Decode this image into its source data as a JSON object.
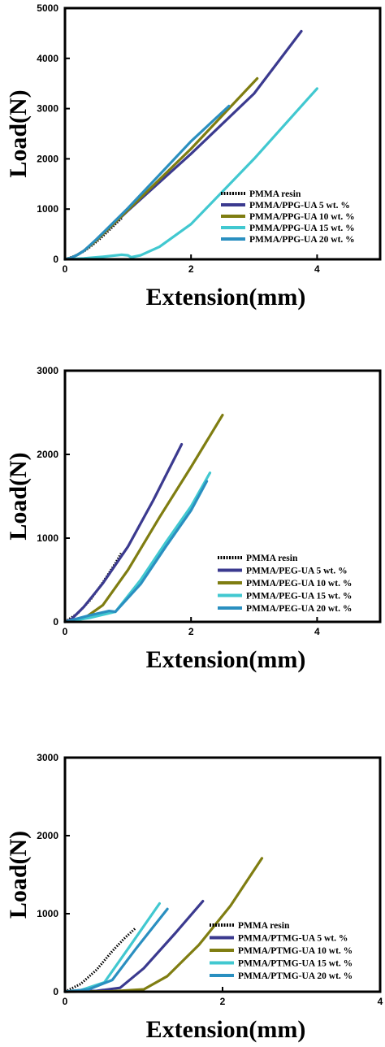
{
  "chart_data": [
    {
      "type": "line",
      "xlabel": "Extension(mm)",
      "ylabel": "Load(N)",
      "xlim": [
        0,
        5
      ],
      "ylim": [
        0,
        5000
      ],
      "xticks": [
        "0",
        "2",
        "4"
      ],
      "xtick_values": [
        0,
        2,
        4
      ],
      "yticks": [
        "0",
        "1000",
        "2000",
        "3000",
        "4000",
        "5000"
      ],
      "ytick_values": [
        0,
        1000,
        2000,
        3000,
        4000,
        5000
      ],
      "legend_position": "bottom-right",
      "grid": false,
      "series": [
        {
          "name": "PMMA resin",
          "color": "#000000",
          "style": "dotted",
          "points": [
            [
              0,
              0
            ],
            [
              0.1,
              40
            ],
            [
              0.2,
              90
            ],
            [
              0.3,
              160
            ],
            [
              0.4,
              250
            ],
            [
              0.5,
              350
            ],
            [
              0.6,
              460
            ],
            [
              0.7,
              580
            ],
            [
              0.8,
              700
            ],
            [
              0.9,
              820
            ]
          ]
        },
        {
          "name": "PMMA/PPG-UA 5 wt. %",
          "color": "#3b3a8f",
          "points": [
            [
              0,
              0
            ],
            [
              0.1,
              30
            ],
            [
              0.2,
              90
            ],
            [
              0.3,
              170
            ],
            [
              0.5,
              380
            ],
            [
              1.0,
              970
            ],
            [
              2.0,
              2100
            ],
            [
              3.0,
              3300
            ],
            [
              3.75,
              4540
            ]
          ]
        },
        {
          "name": "PMMA/PPG-UA 10 wt. %",
          "color": "#7f7d11",
          "points": [
            [
              0,
              0
            ],
            [
              0.1,
              30
            ],
            [
              0.2,
              90
            ],
            [
              0.3,
              170
            ],
            [
              0.5,
              380
            ],
            [
              1.0,
              980
            ],
            [
              2.0,
              2200
            ],
            [
              3.05,
              3600
            ]
          ]
        },
        {
          "name": "PMMA/PPG-UA 15 wt. %",
          "color": "#41c8d0",
          "points": [
            [
              0,
              0
            ],
            [
              0.3,
              20
            ],
            [
              0.6,
              50
            ],
            [
              0.9,
              90
            ],
            [
              1.0,
              80
            ],
            [
              1.05,
              40
            ],
            [
              1.2,
              80
            ],
            [
              1.5,
              250
            ],
            [
              2.0,
              700
            ],
            [
              3.0,
              2000
            ],
            [
              4.0,
              3400
            ]
          ]
        },
        {
          "name": "PMMA/PPG-UA 20 wt. %",
          "color": "#2a8fc0",
          "points": [
            [
              0,
              0
            ],
            [
              0.1,
              30
            ],
            [
              0.2,
              90
            ],
            [
              0.3,
              170
            ],
            [
              0.5,
              400
            ],
            [
              1.0,
              1020
            ],
            [
              2.0,
              2350
            ],
            [
              2.6,
              3050
            ]
          ]
        }
      ]
    },
    {
      "type": "line",
      "xlabel": "Extension(mm)",
      "ylabel": "Load(N)",
      "xlim": [
        0,
        5
      ],
      "ylim": [
        0,
        3000
      ],
      "xticks": [
        "0",
        "2",
        "4"
      ],
      "xtick_values": [
        0,
        2,
        4
      ],
      "yticks": [
        "0",
        "1000",
        "2000",
        "3000"
      ],
      "ytick_values": [
        0,
        1000,
        2000,
        3000
      ],
      "legend_position": "bottom-right",
      "grid": false,
      "series": [
        {
          "name": "PMMA resin",
          "color": "#000000",
          "style": "dotted",
          "points": [
            [
              0,
              0
            ],
            [
              0.2,
              100
            ],
            [
              0.4,
              260
            ],
            [
              0.6,
              470
            ],
            [
              0.8,
              700
            ],
            [
              0.9,
              830
            ]
          ]
        },
        {
          "name": "PMMA/PEG-UA 5 wt. %",
          "color": "#3b3a8f",
          "points": [
            [
              0,
              0
            ],
            [
              0.1,
              30
            ],
            [
              0.3,
              180
            ],
            [
              0.6,
              460
            ],
            [
              1.0,
              900
            ],
            [
              1.4,
              1450
            ],
            [
              1.85,
              2120
            ]
          ]
        },
        {
          "name": "PMMA/PEG-UA 10 wt. %",
          "color": "#7f7d11",
          "points": [
            [
              0,
              0
            ],
            [
              0.3,
              40
            ],
            [
              0.6,
              200
            ],
            [
              1.0,
              620
            ],
            [
              1.5,
              1250
            ],
            [
              2.0,
              1850
            ],
            [
              2.5,
              2470
            ]
          ]
        },
        {
          "name": "PMMA/PEG-UA 15 wt. %",
          "color": "#41c8d0",
          "points": [
            [
              0,
              0
            ],
            [
              0.4,
              50
            ],
            [
              0.8,
              120
            ],
            [
              1.2,
              500
            ],
            [
              1.6,
              950
            ],
            [
              2.0,
              1380
            ],
            [
              2.3,
              1780
            ]
          ]
        },
        {
          "name": "PMMA/PEG-UA 20 wt. %",
          "color": "#2a8fc0",
          "points": [
            [
              0,
              0
            ],
            [
              0.4,
              80
            ],
            [
              0.7,
              130
            ],
            [
              0.8,
              120
            ],
            [
              1.2,
              450
            ],
            [
              1.6,
              900
            ],
            [
              2.0,
              1330
            ],
            [
              2.25,
              1680
            ]
          ]
        }
      ]
    },
    {
      "type": "line",
      "xlabel": "Extension(mm)",
      "ylabel": "Load(N)",
      "xlim": [
        0,
        4
      ],
      "ylim": [
        0,
        3000
      ],
      "xticks": [
        "0",
        "2",
        "4"
      ],
      "xtick_values": [
        0,
        2,
        4
      ],
      "yticks": [
        "0",
        "1000",
        "2000",
        "3000"
      ],
      "ytick_values": [
        0,
        1000,
        2000,
        3000
      ],
      "legend_position": "bottom-right",
      "grid": false,
      "series": [
        {
          "name": "PMMA resin",
          "color": "#000000",
          "style": "dotted",
          "points": [
            [
              0,
              0
            ],
            [
              0.2,
              100
            ],
            [
              0.4,
              280
            ],
            [
              0.6,
              520
            ],
            [
              0.75,
              680
            ],
            [
              0.9,
              820
            ]
          ]
        },
        {
          "name": "PMMA/PTMG-UA 5 wt. %",
          "color": "#3b3a8f",
          "points": [
            [
              0,
              0
            ],
            [
              0.4,
              10
            ],
            [
              0.7,
              50
            ],
            [
              1.0,
              300
            ],
            [
              1.4,
              750
            ],
            [
              1.75,
              1160
            ]
          ]
        },
        {
          "name": "PMMA/PTMG-UA 10 wt. %",
          "color": "#7f7d11",
          "points": [
            [
              0,
              0
            ],
            [
              0.6,
              5
            ],
            [
              1.0,
              30
            ],
            [
              1.3,
              200
            ],
            [
              1.7,
              600
            ],
            [
              2.1,
              1100
            ],
            [
              2.5,
              1710
            ]
          ]
        },
        {
          "name": "PMMA/PTMG-UA 15 wt. %",
          "color": "#41c8d0",
          "points": [
            [
              0,
              0
            ],
            [
              0.2,
              20
            ],
            [
              0.5,
              120
            ],
            [
              0.8,
              550
            ],
            [
              1.2,
              1130
            ]
          ]
        },
        {
          "name": "PMMA/PTMG-UA 20 wt. %",
          "color": "#2a8fc0",
          "points": [
            [
              0,
              0
            ],
            [
              0.3,
              30
            ],
            [
              0.6,
              150
            ],
            [
              0.9,
              550
            ],
            [
              1.3,
              1060
            ]
          ]
        }
      ]
    }
  ]
}
